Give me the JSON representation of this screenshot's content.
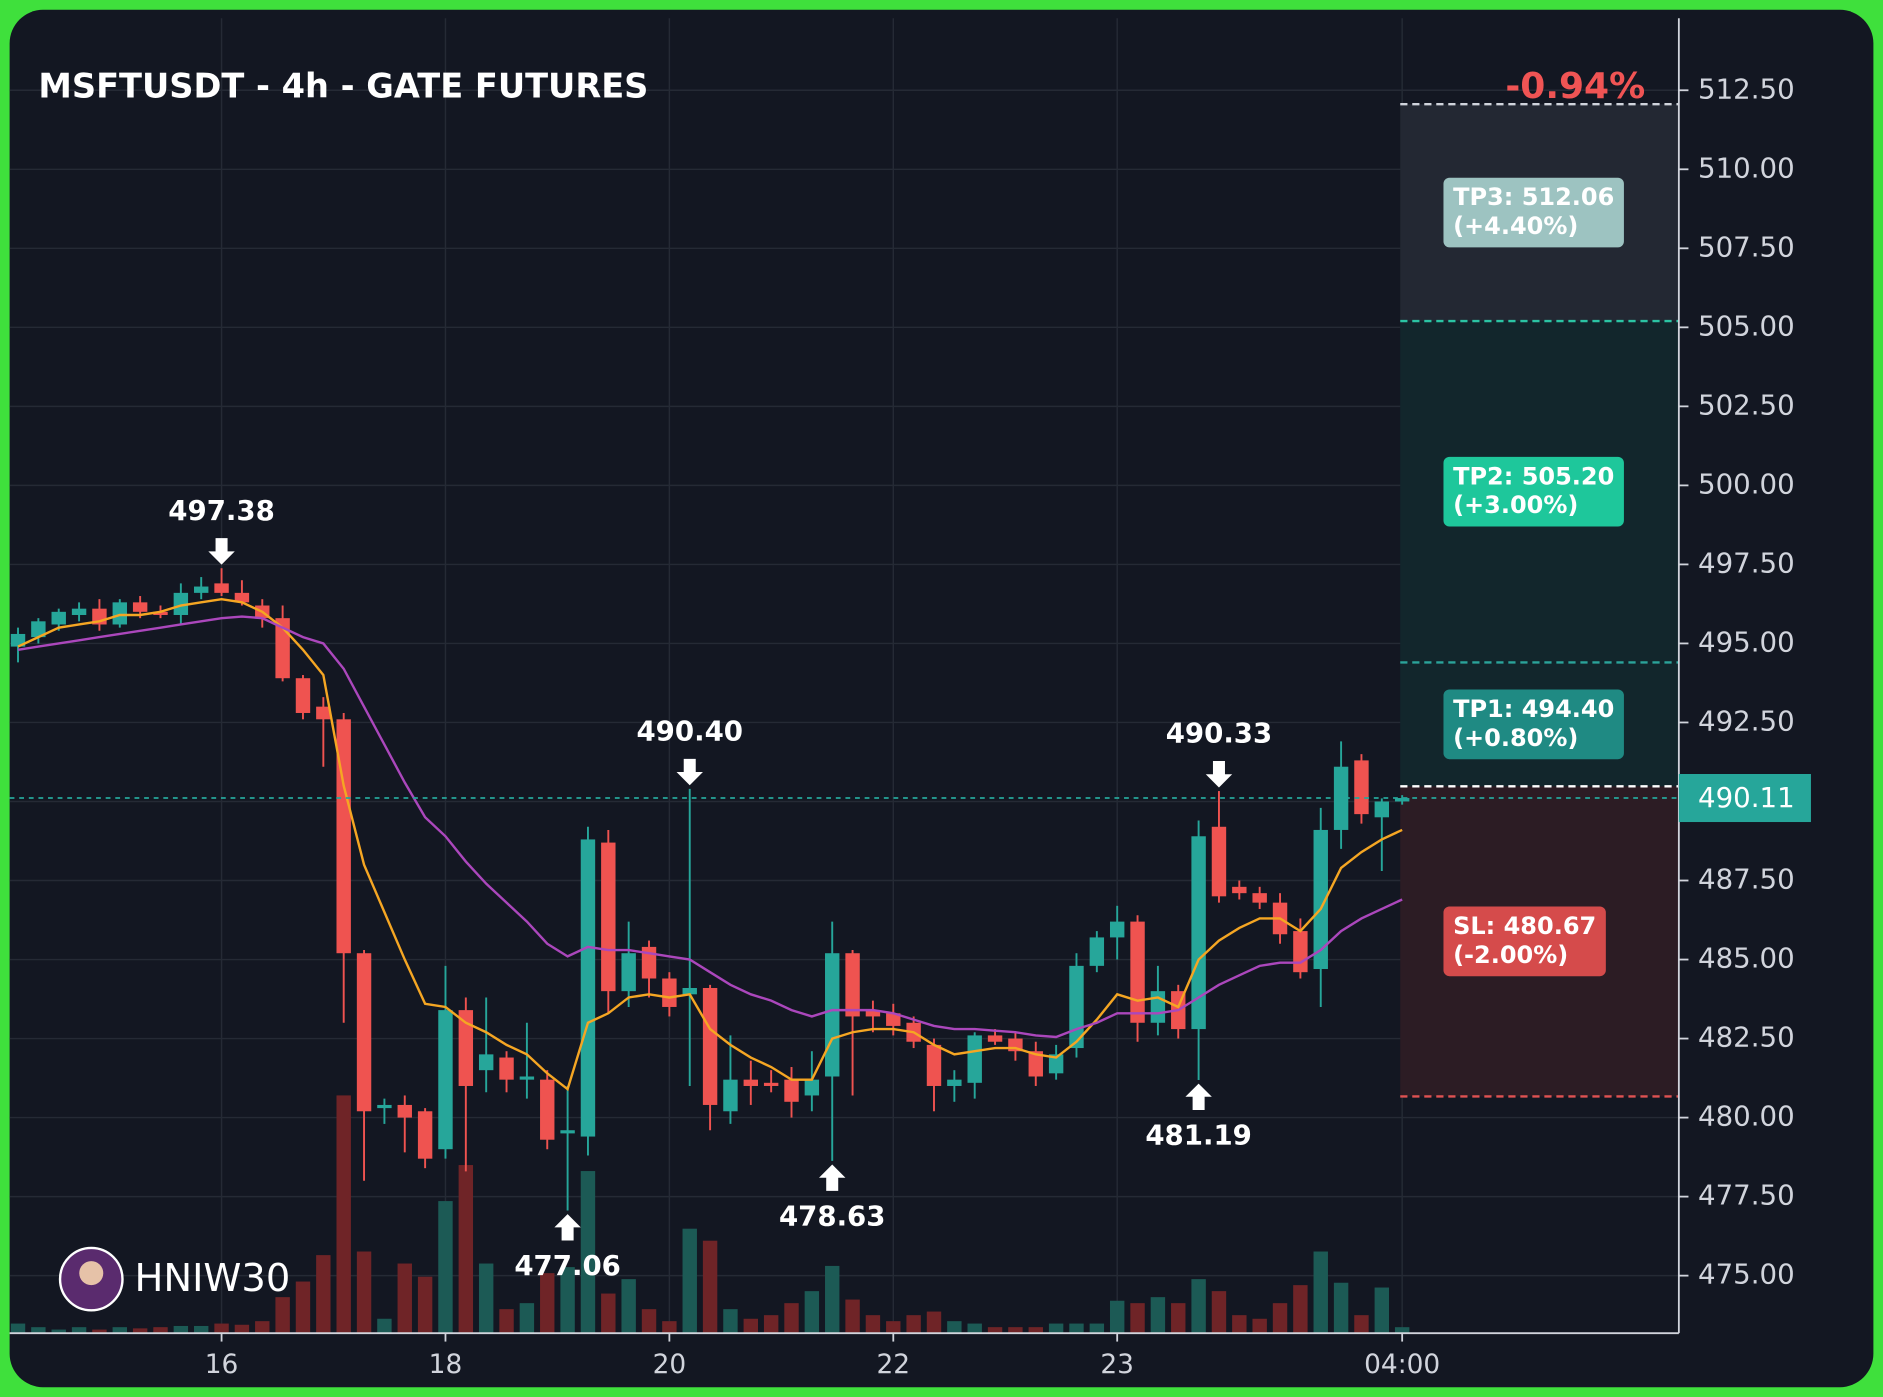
{
  "chart_data": {
    "type": "candlestick",
    "title": "MSFTUSDT - 4h - GATE FUTURES",
    "change": "-0.94%",
    "watermark": "HNIW30",
    "categories": [
      null,
      null,
      null,
      null,
      null,
      null,
      null,
      null,
      null,
      null,
      "16",
      null,
      null,
      null,
      null,
      null,
      null,
      null,
      null,
      null,
      null,
      "18",
      null,
      null,
      null,
      null,
      null,
      null,
      null,
      null,
      null,
      null,
      "20",
      null,
      null,
      null,
      null,
      null,
      null,
      null,
      null,
      null,
      null,
      "22",
      null,
      null,
      null,
      null,
      null,
      null,
      null,
      null,
      null,
      null,
      "23",
      null,
      null,
      null,
      null,
      null,
      null,
      null,
      null,
      null,
      null,
      null,
      null,
      null,
      "04:00"
    ],
    "open": [
      494.9,
      495.2,
      495.6,
      495.9,
      496.1,
      495.6,
      496.3,
      496.0,
      495.9,
      496.6,
      496.9,
      496.6,
      496.2,
      495.8,
      493.9,
      493.0,
      492.6,
      485.2,
      480.3,
      480.4,
      480.2,
      479.0,
      483.4,
      481.5,
      481.9,
      481.2,
      481.2,
      479.5,
      479.4,
      488.7,
      484.0,
      485.4,
      484.4,
      483.9,
      484.1,
      480.2,
      481.2,
      481.1,
      481.2,
      480.7,
      481.3,
      485.2,
      483.4,
      483.3,
      483.0,
      482.3,
      481.0,
      481.1,
      482.6,
      482.5,
      482.1,
      481.4,
      482.2,
      484.8,
      485.7,
      486.2,
      483.0,
      484.0,
      482.8,
      489.2,
      487.3,
      487.1,
      486.8,
      485.9,
      484.7,
      489.1,
      491.3,
      489.5,
      490.0
    ],
    "high": [
      495.5,
      495.8,
      496.1,
      496.3,
      496.4,
      496.4,
      496.5,
      496.2,
      496.9,
      497.1,
      497.38,
      497.0,
      496.4,
      496.2,
      494.0,
      493.3,
      492.8,
      485.3,
      480.6,
      480.7,
      480.3,
      484.8,
      483.8,
      483.8,
      482.1,
      483.0,
      481.5,
      481.0,
      489.2,
      489.1,
      486.2,
      485.6,
      484.6,
      490.4,
      484.2,
      482.6,
      481.8,
      481.5,
      481.6,
      482.1,
      486.2,
      485.3,
      483.7,
      483.6,
      483.2,
      482.5,
      481.5,
      482.7,
      482.8,
      482.7,
      482.4,
      482.3,
      485.2,
      485.9,
      486.7,
      486.4,
      484.8,
      484.2,
      489.4,
      490.33,
      487.5,
      487.3,
      487.1,
      486.3,
      489.8,
      491.9,
      491.5,
      490.1,
      490.2
    ],
    "low": [
      494.4,
      495.0,
      495.4,
      495.7,
      495.4,
      495.5,
      495.8,
      495.8,
      495.6,
      496.4,
      496.5,
      496.2,
      495.5,
      493.8,
      492.6,
      491.1,
      483.0,
      478.0,
      479.8,
      478.9,
      478.4,
      478.7,
      478.3,
      480.8,
      480.8,
      480.6,
      479.0,
      477.06,
      478.8,
      483.3,
      483.5,
      483.8,
      483.2,
      481.0,
      479.6,
      479.8,
      480.4,
      480.8,
      480.0,
      480.2,
      478.63,
      480.7,
      482.7,
      482.6,
      482.2,
      480.2,
      480.5,
      480.6,
      482.3,
      481.8,
      481.0,
      481.2,
      481.9,
      484.6,
      485.0,
      482.4,
      482.6,
      482.5,
      481.19,
      486.8,
      486.9,
      486.6,
      485.5,
      484.4,
      483.5,
      488.5,
      489.3,
      487.8,
      489.9
    ],
    "close": [
      495.3,
      495.7,
      496.0,
      496.1,
      495.6,
      496.3,
      496.0,
      495.9,
      496.6,
      496.8,
      496.6,
      496.3,
      495.8,
      493.9,
      492.8,
      492.6,
      485.2,
      480.2,
      480.4,
      480.0,
      478.7,
      483.4,
      481.0,
      482.0,
      481.2,
      481.3,
      479.3,
      479.6,
      488.8,
      484.0,
      485.2,
      484.4,
      483.5,
      484.1,
      480.4,
      481.2,
      481.0,
      481.0,
      480.5,
      481.2,
      485.2,
      483.2,
      483.2,
      482.9,
      482.4,
      481.0,
      481.2,
      482.6,
      482.4,
      482.1,
      481.3,
      482.0,
      484.8,
      485.7,
      486.2,
      483.0,
      484.0,
      482.8,
      488.9,
      487.0,
      487.1,
      486.8,
      485.8,
      484.6,
      489.1,
      491.1,
      489.6,
      490.0,
      490.11
    ],
    "volume": [
      8,
      5,
      3,
      5,
      3,
      5,
      4,
      5,
      6,
      6,
      8,
      7,
      10,
      30,
      43,
      65,
      198,
      68,
      12,
      58,
      47,
      110,
      140,
      58,
      20,
      25,
      50,
      55,
      135,
      33,
      45,
      20,
      10,
      87,
      77,
      20,
      12,
      15,
      25,
      35,
      56,
      28,
      15,
      10,
      15,
      18,
      10,
      8,
      5,
      5,
      5,
      8,
      8,
      8,
      27,
      25,
      30,
      25,
      45,
      35,
      15,
      12,
      25,
      40,
      68,
      42,
      15,
      38,
      5
    ],
    "volume_ylim": [
      0,
      250
    ],
    "up_color": "#26a69a",
    "down_color": "#ef5350",
    "volume_up_color": "#1c5a55",
    "volume_down_color": "#6f2427",
    "lines": [
      {
        "color": "#f5a623",
        "values": [
          494.9,
          495.2,
          495.5,
          495.6,
          495.7,
          495.9,
          495.9,
          496.0,
          496.2,
          496.3,
          496.4,
          496.3,
          496.0,
          495.5,
          494.8,
          494.0,
          490.5,
          488.0,
          486.5,
          485.0,
          483.6,
          483.5,
          483.0,
          482.7,
          482.3,
          482.0,
          481.4,
          480.9,
          483.0,
          483.3,
          483.8,
          483.9,
          483.8,
          483.9,
          482.8,
          482.3,
          481.9,
          481.6,
          481.2,
          481.2,
          482.5,
          482.7,
          482.8,
          482.8,
          482.7,
          482.3,
          482.0,
          482.1,
          482.2,
          482.2,
          482.0,
          481.9,
          482.4,
          483.1,
          483.9,
          483.7,
          483.8,
          483.5,
          485.0,
          485.6,
          486.0,
          486.3,
          486.3,
          485.9,
          486.6,
          487.9,
          488.4,
          488.8,
          489.1
        ]
      },
      {
        "color": "#ab47bc",
        "values": [
          494.8,
          494.9,
          495.0,
          495.1,
          495.2,
          495.3,
          495.4,
          495.5,
          495.6,
          495.7,
          495.8,
          495.85,
          495.8,
          495.5,
          495.2,
          495.0,
          494.2,
          493.0,
          491.8,
          490.6,
          489.5,
          488.9,
          488.1,
          487.4,
          486.8,
          486.2,
          485.5,
          485.1,
          485.4,
          485.3,
          485.3,
          485.2,
          485.1,
          485.0,
          484.6,
          484.2,
          483.9,
          483.7,
          483.4,
          483.2,
          483.4,
          483.4,
          483.4,
          483.3,
          483.1,
          482.9,
          482.8,
          482.8,
          482.75,
          482.7,
          482.6,
          482.55,
          482.8,
          483.0,
          483.3,
          483.3,
          483.3,
          483.4,
          483.8,
          484.2,
          484.5,
          484.8,
          484.9,
          484.9,
          485.3,
          485.9,
          486.3,
          486.6,
          486.9
        ]
      }
    ],
    "annotations": [
      {
        "at": 10,
        "kind": "high",
        "value": 497.38,
        "label": "497.38"
      },
      {
        "at": 27,
        "kind": "low",
        "value": 477.06,
        "label": "477.06"
      },
      {
        "at": 33,
        "kind": "high",
        "value": 490.4,
        "label": "490.40"
      },
      {
        "at": 40,
        "kind": "low",
        "value": 478.63,
        "label": "478.63"
      },
      {
        "at": 58,
        "kind": "low",
        "value": 481.19,
        "label": "481.19"
      },
      {
        "at": 59,
        "kind": "high",
        "value": 490.33,
        "label": "490.33"
      }
    ],
    "entry": 490.48,
    "targets": [
      {
        "label": "TP3: 512.06",
        "note": "(+4.40%)",
        "value": 512.06,
        "line_color": "#d0d4dc",
        "zone_color": "#232833",
        "box_color": "#9dc3c1"
      },
      {
        "label": "TP2: 505.20",
        "note": "(+3.00%)",
        "value": 505.2,
        "line_color": "#2bc4a4",
        "zone_color": "#12262c",
        "box_color": "#1ec79b"
      },
      {
        "label": "TP1: 494.40",
        "note": "(+0.80%)",
        "value": 494.4,
        "line_color": "#2ba39a",
        "zone_color": "#12262c",
        "box_color": "#1f8a83"
      },
      {
        "label": "SL: 480.67",
        "note": "(-2.00%)",
        "value": 480.67,
        "line_color": "#e05252",
        "zone_color": "#2c1c24",
        "box_color": "#d54b4b"
      }
    ],
    "ylim": [
      473.18,
      514.78
    ],
    "yticks": [
      {
        "value": 475,
        "label": "475.00"
      },
      {
        "value": 477.5,
        "label": "477.50"
      },
      {
        "value": 480,
        "label": "480.00"
      },
      {
        "value": 482.5,
        "label": "482.50"
      },
      {
        "value": 485,
        "label": "485.00"
      },
      {
        "value": 487.5,
        "label": "487.50"
      },
      {
        "value": 490,
        "label": "490.00"
      },
      {
        "value": 492.5,
        "label": "492.50"
      },
      {
        "value": 495,
        "label": "495.00"
      },
      {
        "value": 497.5,
        "label": "497.50"
      },
      {
        "value": 500,
        "label": "500.00"
      },
      {
        "value": 502.5,
        "label": "502.50"
      },
      {
        "value": 505,
        "label": "505.00"
      },
      {
        "value": 507.5,
        "label": "507.50"
      },
      {
        "value": 510,
        "label": "510.00"
      },
      {
        "value": 512.5,
        "label": "512.50"
      }
    ],
    "grid": true
  }
}
